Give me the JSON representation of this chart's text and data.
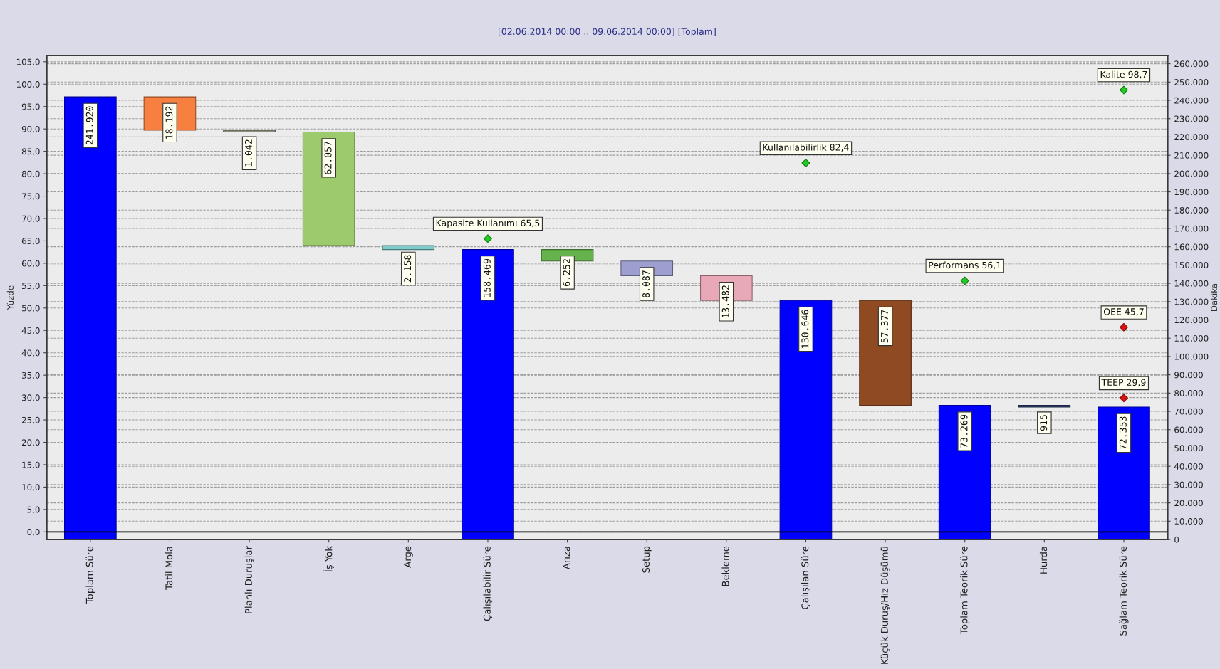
{
  "chart_data": {
    "type": "bar",
    "title": "[02.06.2014 00:00 .. 09.06.2014 00:00] [Toplam]",
    "ylabel": "Yüzde",
    "y2label": "Dakika",
    "categories": [
      "Toplam Süre",
      "Tatil Mola",
      "Planlı Duruşlar",
      "İş Yok",
      "Arge",
      "Çalışılabilir Süre",
      "Arıza",
      "Setup",
      "Bekleme",
      "Çalışılan Süre",
      "Küçük Duruş/Hız Düşümü",
      "Toplam Teorik Süre",
      "Hurda",
      "Sağlam Teorik Süre"
    ],
    "series": [
      {
        "axis": "y2",
        "values": [
          241920,
          18192,
          1042,
          62057,
          2158,
          158469,
          6252,
          8087,
          13482,
          130646,
          57377,
          73269,
          915,
          72353
        ],
        "base": [
          0,
          223728,
          222686,
          160629,
          158471,
          0,
          152217,
          144130,
          130648,
          0,
          73269,
          0,
          72354,
          0
        ],
        "colors": [
          "#0000ff",
          "#f77f3f",
          "#8c8c7c",
          "#9cca6c",
          "#7fcccc",
          "#0000ff",
          "#66b34d",
          "#9e9ed0",
          "#e8a8b8",
          "#0000ff",
          "#8f4a22",
          "#0000ff",
          "#2e3f70",
          "#0000ff"
        ],
        "value_labels": [
          "241.920",
          "18.192",
          "1.042",
          "62.057",
          "2.158",
          "158.469",
          "6.252",
          "8.087",
          "13.482",
          "130.646",
          "57.377",
          "73.269",
          "915",
          "72.353"
        ]
      },
      {
        "type": "scatter",
        "axis": "y",
        "marker": "diamond",
        "color": "#22cc22",
        "x": [
          "Çalışılabilir Süre",
          "Çalışılan Süre",
          "Toplam Teorik Süre",
          "Sağlam Teorik Süre"
        ],
        "values": [
          65.5,
          82.4,
          56.1,
          98.7
        ],
        "value_labels": [
          "Kapasite Kullanımı 65,5",
          "Kullanılabilirlik 82,4",
          "Performans 56,1",
          "Kalite 98,7"
        ]
      },
      {
        "type": "scatter",
        "axis": "y",
        "marker": "diamond",
        "color": "#dd1111",
        "x": [
          "Sağlam Teorik Süre",
          "Sağlam Teorik Süre"
        ],
        "values": [
          45.7,
          29.9
        ],
        "value_labels": [
          "OEE 45,7",
          "TEEP 29,9"
        ]
      }
    ],
    "ylim": [
      -1.7,
      106.4
    ],
    "yticks": [
      {
        "value": 0,
        "label": "0,0"
      },
      {
        "value": 5,
        "label": "5,0"
      },
      {
        "value": 10,
        "label": "10,0"
      },
      {
        "value": 15,
        "label": "15,0"
      },
      {
        "value": 20,
        "label": "20,0"
      },
      {
        "value": 25,
        "label": "25,0"
      },
      {
        "value": 30,
        "label": "30,0"
      },
      {
        "value": 35,
        "label": "35,0"
      },
      {
        "value": 40,
        "label": "40,0"
      },
      {
        "value": 45,
        "label": "45,0"
      },
      {
        "value": 50,
        "label": "50,0"
      },
      {
        "value": 55,
        "label": "55,0"
      },
      {
        "value": 60,
        "label": "60,0"
      },
      {
        "value": 65,
        "label": "65,0"
      },
      {
        "value": 70,
        "label": "70,0"
      },
      {
        "value": 75,
        "label": "75,0"
      },
      {
        "value": 80,
        "label": "80,0"
      },
      {
        "value": 85,
        "label": "85,0"
      },
      {
        "value": 90,
        "label": "90,0"
      },
      {
        "value": 95,
        "label": "95,0"
      },
      {
        "value": 100,
        "label": "100,0"
      },
      {
        "value": 105,
        "label": "105,0"
      }
    ],
    "y2lim": [
      0,
      264500
    ],
    "y2ticks": [
      0,
      {
        "value": 10000,
        "label": "10.000"
      },
      {
        "value": 20000,
        "label": "20.000"
      },
      {
        "value": 30000,
        "label": "30.000"
      },
      {
        "value": 40000,
        "label": "40.000"
      },
      {
        "value": 50000,
        "label": "50.000"
      },
      {
        "value": 60000,
        "label": "60.000"
      },
      {
        "value": 70000,
        "label": "70.000"
      },
      {
        "value": 80000,
        "label": "80.000"
      },
      {
        "value": 90000,
        "label": "90.000"
      },
      {
        "value": 100000,
        "label": "100.000"
      },
      {
        "value": 110000,
        "label": "110.000"
      },
      {
        "value": 120000,
        "label": "120.000"
      },
      {
        "value": 130000,
        "label": "130.000"
      },
      {
        "value": 140000,
        "label": "140.000"
      },
      {
        "value": 150000,
        "label": "150.000"
      },
      {
        "value": 160000,
        "label": "160.000"
      },
      {
        "value": 170000,
        "label": "170.000"
      },
      {
        "value": 180000,
        "label": "180.000"
      },
      {
        "value": 190000,
        "label": "190.000"
      },
      {
        "value": 200000,
        "label": "200.000"
      },
      {
        "value": 210000,
        "label": "210.000"
      },
      {
        "value": 220000,
        "label": "220.000"
      },
      {
        "value": 230000,
        "label": "230.000"
      },
      {
        "value": 240000,
        "label": "240.000"
      },
      {
        "value": 250000,
        "label": "250.000"
      },
      {
        "value": 260000,
        "label": "260.000"
      }
    ],
    "grid": "y",
    "ref_lines": [
      {
        "axis": "y",
        "value": 0,
        "color": "#000000"
      }
    ]
  }
}
